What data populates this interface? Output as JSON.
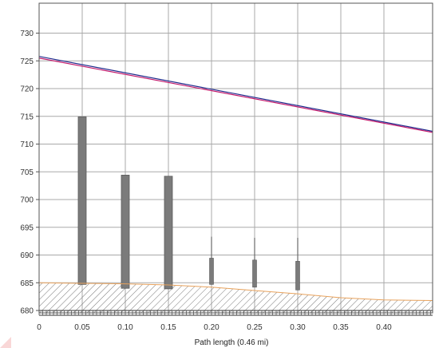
{
  "chart_data": {
    "type": "line",
    "title": "",
    "xlabel": "Path length (0.46 mi)",
    "ylabel": "",
    "xlim": [
      0,
      0.46
    ],
    "ylim": [
      680,
      735
    ],
    "x_ticks": [
      0,
      0.05,
      0.1,
      0.15,
      0.2,
      0.25,
      0.3,
      0.35,
      0.4
    ],
    "x_tick_labels": [
      "0",
      "0.05",
      "0.10",
      "0.15",
      "0.20",
      "0.25",
      "0.30",
      "0.35",
      "0.40"
    ],
    "y_ticks": [
      680,
      685,
      690,
      695,
      700,
      705,
      710,
      715,
      720,
      725,
      730
    ],
    "y_tick_labels": [
      "680",
      "685",
      "690",
      "695",
      "700",
      "705",
      "710",
      "715",
      "720",
      "725",
      "730"
    ],
    "grid": true,
    "series": [
      {
        "color": "#1f2a8c",
        "x": [
          0,
          0.46
        ],
        "y": [
          725.8,
          712.2
        ]
      },
      {
        "color": "#c2186b",
        "x": [
          0,
          0.46
        ],
        "y": [
          725.5,
          712.0
        ]
      },
      {
        "color": "#e8a25c",
        "x": [
          0,
          0.05,
          0.1,
          0.15,
          0.2,
          0.25,
          0.3,
          0.35,
          0.4,
          0.46
        ],
        "y": [
          685.0,
          684.9,
          684.8,
          684.6,
          684.2,
          683.6,
          683.0,
          682.3,
          681.9,
          681.8
        ]
      }
    ],
    "obstructions": [
      {
        "x": 0.05,
        "bottom": 684.7,
        "top": 714.9,
        "style": "wide"
      },
      {
        "x": 0.1,
        "bottom": 684.0,
        "top": 704.4,
        "style": "wide"
      },
      {
        "x": 0.15,
        "bottom": 683.9,
        "top": 704.2,
        "style": "wide"
      },
      {
        "x": 0.2,
        "bottom": 684.7,
        "top": 693.3,
        "style": "antenna"
      },
      {
        "x": 0.25,
        "bottom": 684.2,
        "top": 693.1,
        "style": "antenna"
      },
      {
        "x": 0.3,
        "bottom": 683.7,
        "top": 693.1,
        "style": "antenna"
      }
    ],
    "colors": {
      "background": "#ffffff",
      "grid": "#a9a9a9",
      "ground_hatch": "#6c6c6c",
      "obstruction": "#7b7b7b"
    }
  }
}
